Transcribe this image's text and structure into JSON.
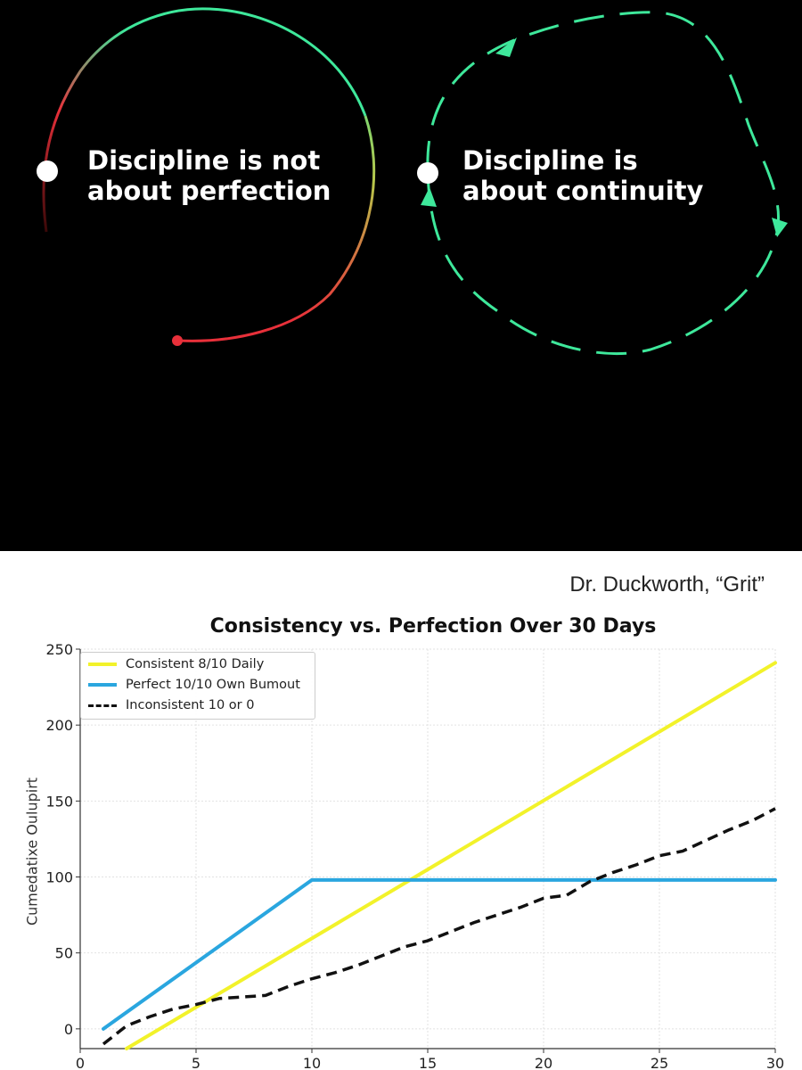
{
  "hero": {
    "left_text": [
      "Discipline is not",
      "about perfection"
    ],
    "right_text": [
      "Discipline is",
      "about continuity"
    ],
    "colors": {
      "background": "#000000",
      "green": "#3ee89b",
      "red": "#e8303a",
      "white": "#ffffff"
    }
  },
  "citation": "Dr. Duckworth, “Grit”",
  "chart_data": {
    "type": "line",
    "title": "Consistency vs. Perfection Over 30 Days",
    "xlabel": "",
    "ylabel": "Cumedatixe Oulupirt",
    "xlim": [
      0,
      30
    ],
    "ylim": [
      -13,
      250
    ],
    "xticks": [
      0,
      5,
      10,
      15,
      20,
      25,
      30
    ],
    "yticks": [
      0,
      50,
      100,
      150,
      200,
      250
    ],
    "grid": true,
    "legend_position": "top-left",
    "series": [
      {
        "name": "Consistent 8/10 Daily",
        "color": "#f2f22a",
        "style": "solid",
        "x": [
          2,
          30
        ],
        "y": [
          -13,
          241
        ]
      },
      {
        "name": "Perfect 10/10 Own Bumout",
        "color": "#2aa6df",
        "style": "solid",
        "x": [
          1,
          10,
          30
        ],
        "y": [
          0,
          98,
          98
        ]
      },
      {
        "name": "Inconsistent 10 or 0",
        "color": "#111111",
        "style": "dashed",
        "x": [
          1,
          2,
          3,
          4,
          5,
          6,
          7,
          8,
          9,
          10,
          11,
          12,
          13,
          14,
          15,
          16,
          17,
          18,
          19,
          20,
          21,
          22,
          23,
          24,
          25,
          26,
          27,
          28,
          29,
          30
        ],
        "y": [
          -10,
          2,
          8,
          13,
          16,
          20,
          21,
          22,
          28,
          33,
          37,
          42,
          48,
          54,
          58,
          64,
          70,
          75,
          80,
          86,
          88,
          97,
          103,
          108,
          114,
          117,
          124,
          131,
          137,
          145
        ]
      }
    ]
  }
}
